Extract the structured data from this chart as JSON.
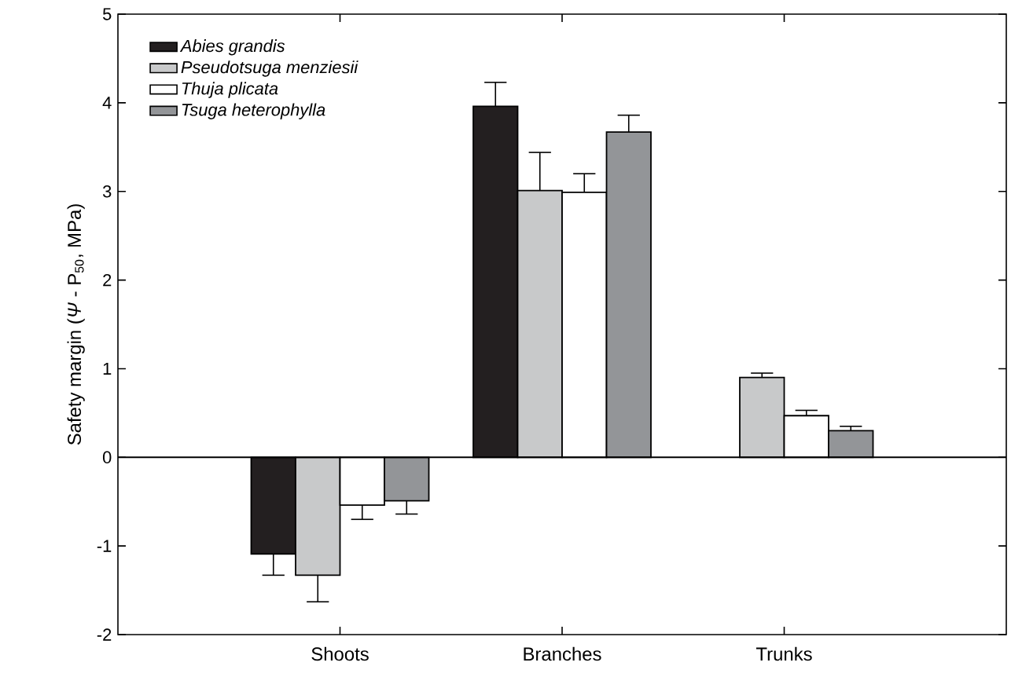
{
  "chart_data": {
    "type": "bar",
    "ylabel": "Safety margin (*Ψ* - P$_{50}$, MPa)",
    "categories": [
      "Shoots",
      "Branches",
      "Trunks"
    ],
    "series": [
      {
        "name": "Abies grandis",
        "color": "#231f20",
        "values": [
          -1.09,
          3.96,
          null
        ],
        "errors": [
          [
            -1.33,
            -1.09
          ],
          [
            3.96,
            4.23
          ],
          null
        ]
      },
      {
        "name": "Pseudotsuga menziesii",
        "color": "#c8c9ca",
        "values": [
          -1.33,
          3.01,
          0.9
        ],
        "errors": [
          [
            -1.63,
            -1.33
          ],
          [
            3.01,
            3.44
          ],
          [
            0.9,
            0.95
          ]
        ]
      },
      {
        "name": "Thuja plicata",
        "color": "#ffffff",
        "values": [
          -0.54,
          2.99,
          0.47
        ],
        "errors": [
          [
            -0.7,
            -0.54
          ],
          [
            2.99,
            3.2
          ],
          [
            0.47,
            0.53
          ]
        ]
      },
      {
        "name": "Tsuga heterophylla",
        "color": "#939598",
        "values": [
          -0.49,
          3.67,
          0.3
        ],
        "errors": [
          [
            -0.64,
            -0.49
          ],
          [
            3.67,
            3.86
          ],
          [
            0.3,
            0.35
          ]
        ]
      }
    ],
    "ylim": [
      -2,
      5
    ],
    "yticks": [
      -2,
      -1,
      0,
      1,
      2,
      3,
      4,
      5
    ],
    "ref_lines": [
      {
        "axis": "y",
        "value": 0
      }
    ],
    "legend": "top left",
    "grid": false
  }
}
